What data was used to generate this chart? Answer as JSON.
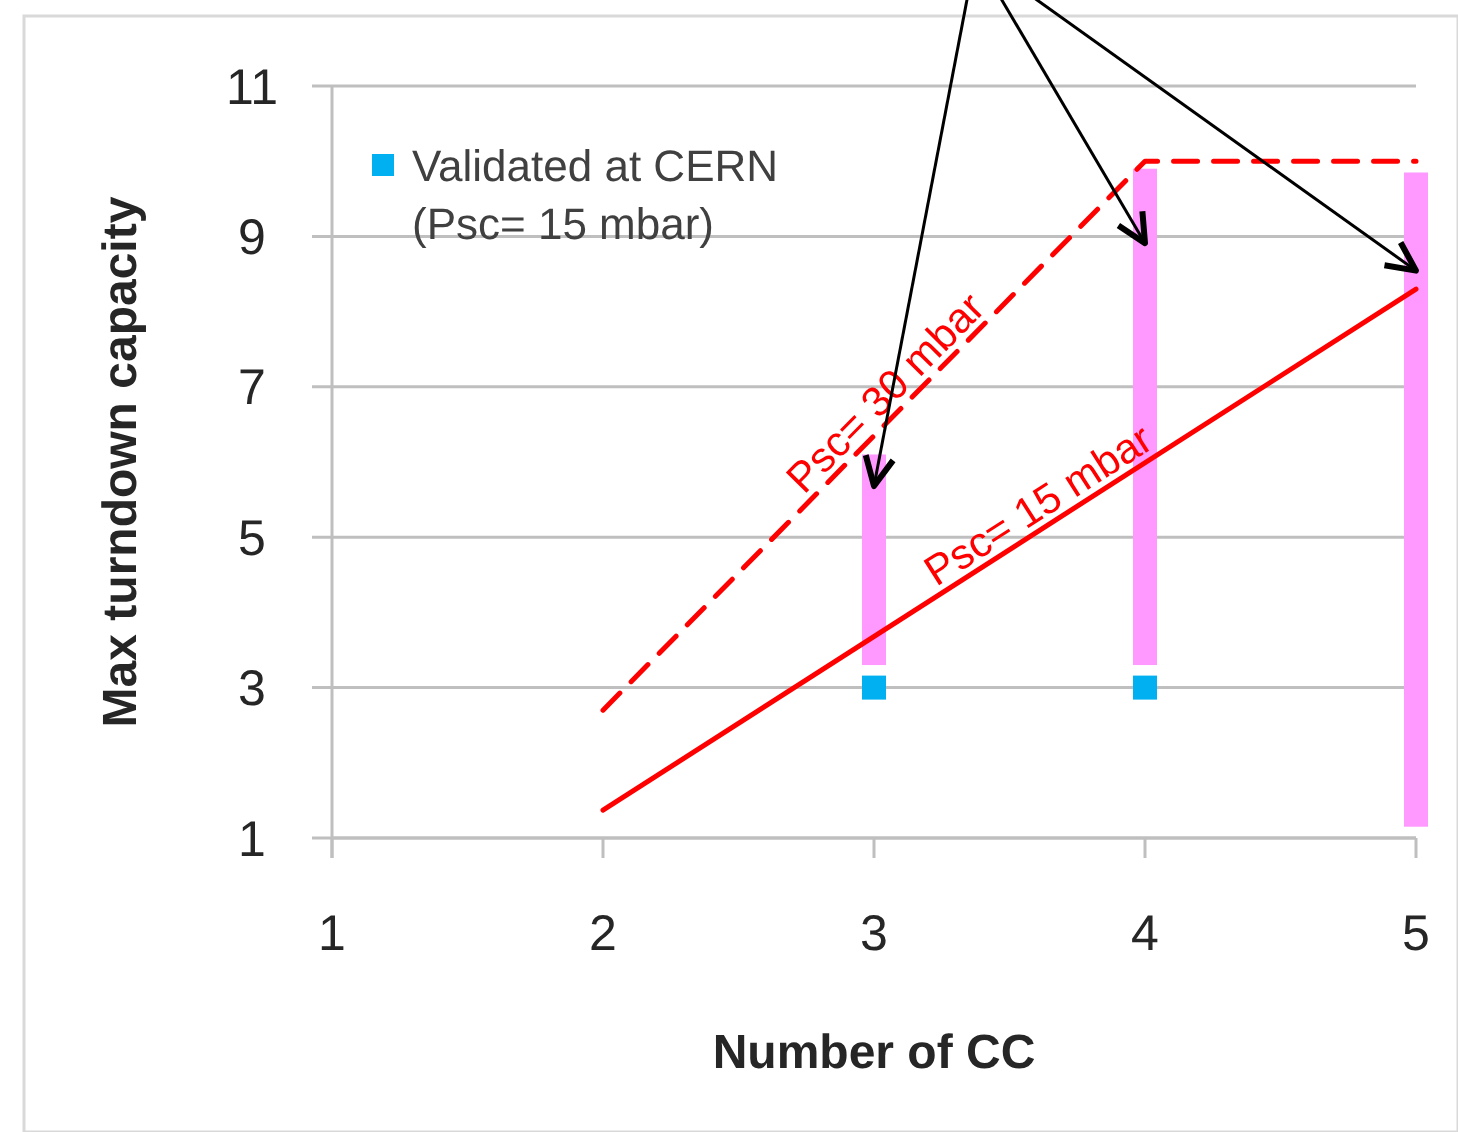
{
  "chart_data": {
    "type": "line",
    "xlabel": "Number of CC",
    "ylabel": "Max turndown capacity",
    "xlim": [
      1,
      5
    ],
    "xticks": [
      1,
      2,
      3,
      4,
      5
    ],
    "ylim": [
      1,
      11
    ],
    "yticks": [
      1,
      3,
      5,
      7,
      9,
      11
    ],
    "grid": "y",
    "legend": "top left",
    "series": [
      {
        "type": "bar",
        "color": "#ff99ff",
        "x": [
          3,
          4,
          5
        ],
        "base": [
          3.3,
          3.3,
          1.15
        ],
        "values": [
          2.8,
          6.6,
          8.7
        ]
      },
      {
        "type": "line",
        "name": "Psc= 15 mbar",
        "color": "#ff0000",
        "x": [
          2,
          5
        ],
        "values": [
          1.37,
          8.3
        ],
        "line_style": "solid"
      },
      {
        "type": "line",
        "name": "Psc= 30 mbar",
        "color": "#ff0000",
        "x": [
          2,
          4,
          5
        ],
        "values": [
          2.7,
          10,
          10
        ],
        "line_style": "dashed"
      },
      {
        "type": "scatter",
        "name": "Validated at CERN (Psc= 15 mbar)",
        "color": "#00b0f0",
        "x": [
          3,
          4
        ],
        "values": [
          3,
          3
        ],
        "marker": "square"
      }
    ]
  }
}
